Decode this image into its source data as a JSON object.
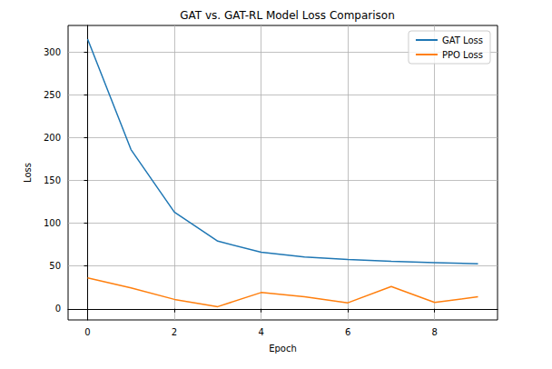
{
  "chart_data": {
    "type": "line",
    "title": "GAT vs. GAT-RL Model Loss Comparison",
    "x_label": "Epoch",
    "y_label": "Loss",
    "x": [
      0,
      1,
      2,
      3,
      4,
      5,
      6,
      7,
      8,
      9
    ],
    "series": [
      {
        "name": "GAT Loss",
        "color": "#1f77b4",
        "values": [
          315,
          186,
          113,
          79,
          66,
          60.5,
          57.5,
          55.5,
          54,
          52.5
        ]
      },
      {
        "name": "PPO Loss",
        "color": "#ff7f0e",
        "values": [
          36,
          24.5,
          11,
          2.5,
          19,
          14,
          7,
          26,
          7.5,
          14
        ]
      }
    ],
    "xlim": [
      -0.45,
      9.45
    ],
    "xticks": [
      0,
      2,
      4,
      6,
      8
    ],
    "ylim": [
      -13,
      331
    ],
    "yticks": [
      0,
      50,
      100,
      150,
      200,
      250,
      300
    ],
    "grid": true,
    "legend": "upper right"
  }
}
